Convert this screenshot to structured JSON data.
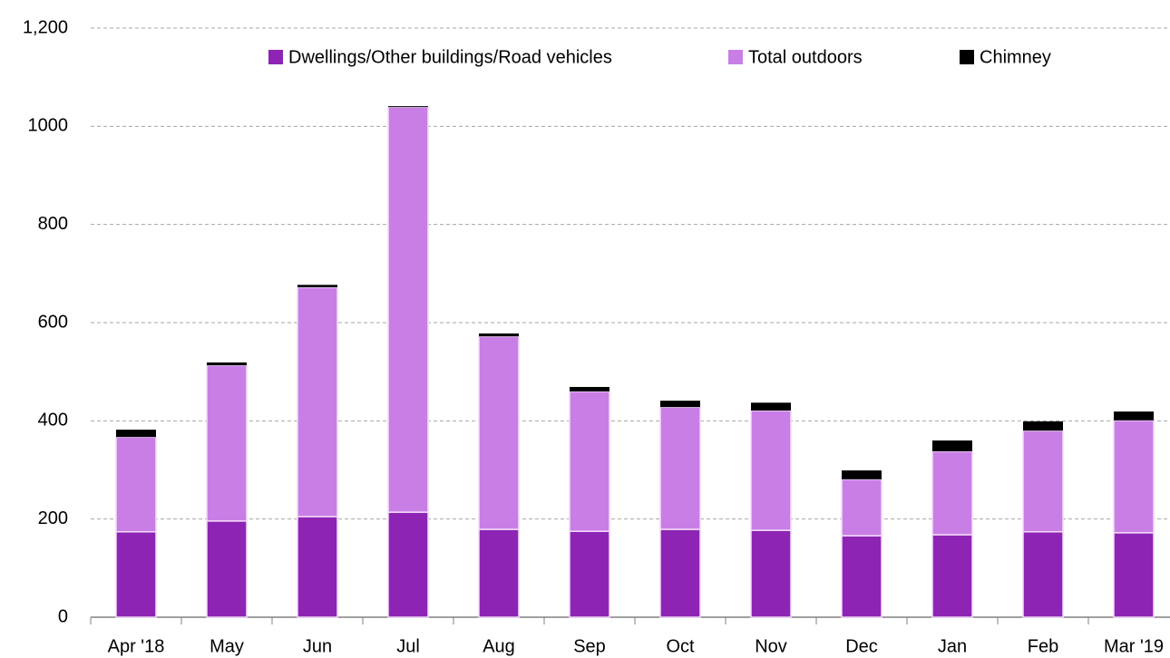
{
  "chart_data": {
    "type": "stacked-bar",
    "categories": [
      "Apr '18",
      "May",
      "Jun",
      "Jul",
      "Aug",
      "Sep",
      "Oct",
      "Nov",
      "Dec",
      "Jan",
      "Feb",
      "Mar '19"
    ],
    "series": [
      {
        "name": "Dwellings/Other buildings/Road vehicles",
        "color": "#8e24b4",
        "values": [
          174,
          196,
          205,
          214,
          179,
          175,
          179,
          177,
          166,
          168,
          174,
          172
        ]
      },
      {
        "name": "Total outdoors",
        "color": "#c97ee6",
        "values": [
          193,
          317,
          467,
          825,
          393,
          285,
          249,
          244,
          115,
          170,
          206,
          229
        ]
      },
      {
        "name": "Chimney",
        "color": "#000000",
        "values": [
          15,
          6,
          5,
          2,
          6,
          9,
          13,
          16,
          18,
          22,
          19,
          18
        ]
      }
    ],
    "ylim": [
      0,
      1200
    ],
    "yticks": [
      0,
      200,
      400,
      600,
      800,
      1000,
      {
        "value": 1200,
        "label": "1,200"
      }
    ],
    "grid": true,
    "legend": "top"
  }
}
